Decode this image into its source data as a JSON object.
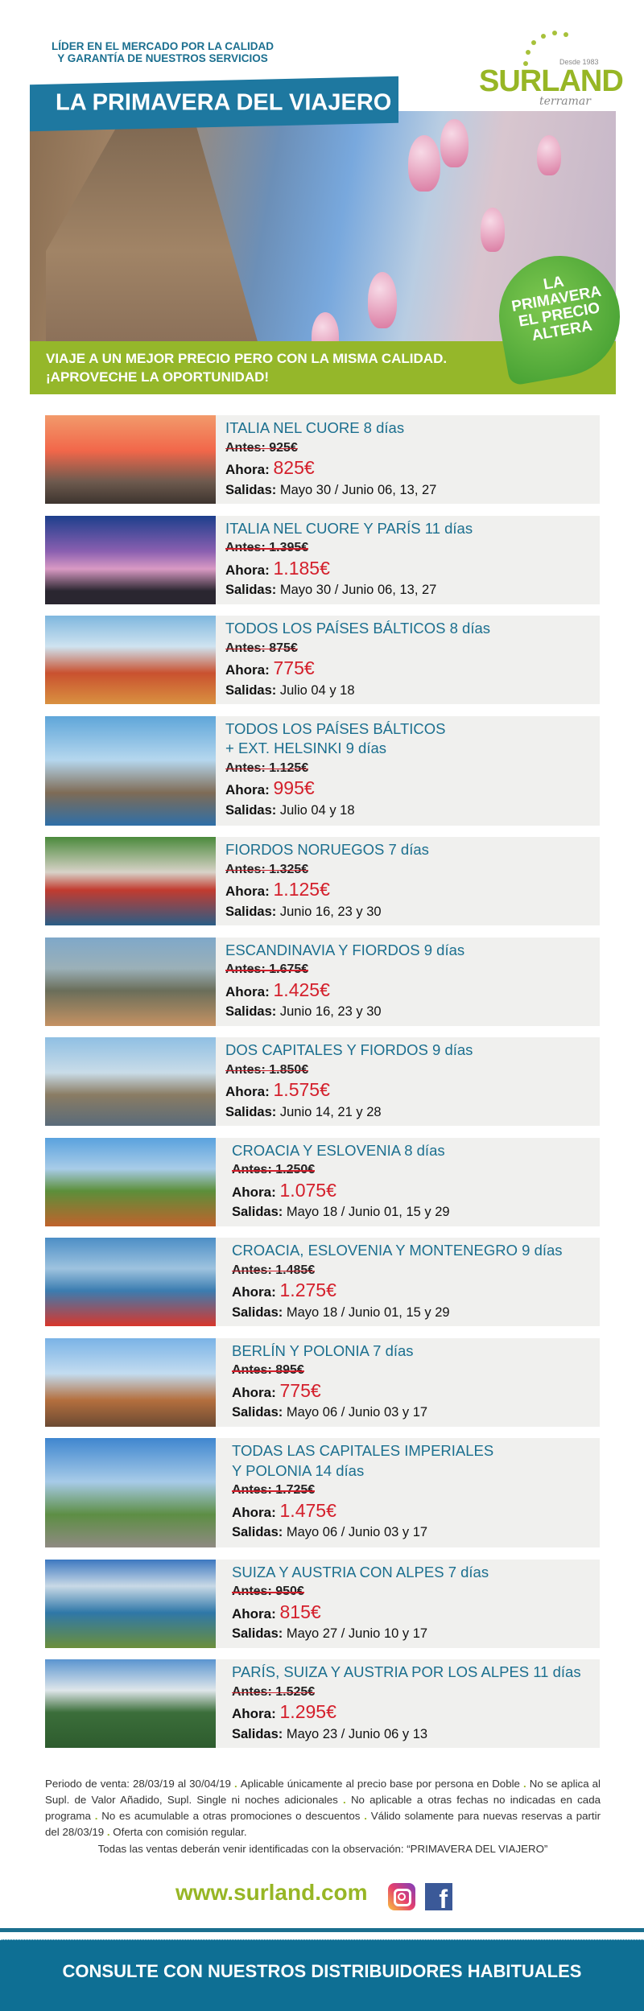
{
  "header": {
    "tagline": [
      "LÍDER EN EL MERCADO POR LA CALIDAD",
      "Y GARANTÍA DE NUESTROS SERVICIOS"
    ],
    "logo": {
      "brand": "SURLAND",
      "sub": "terramar",
      "since": "Desde 1983"
    },
    "banner_title": "LA PRIMAVERA DEL VIAJERO",
    "sticker": [
      "LA",
      "PRIMAVERA",
      "EL PRECIO",
      "ALTERA"
    ],
    "slogan": [
      "VIAJE A UN MEJOR PRECIO PERO CON LA MISMA CALIDAD.",
      "¡APROVECHE LA OPORTUNIDAD!"
    ]
  },
  "labels": {
    "antes": "Antes:",
    "ahora": "Ahora:",
    "salidas": "Salidas:"
  },
  "trips": [
    {
      "title": "ITALIA NEL CUORE 8 días",
      "antes": "925€",
      "ahora": "825€",
      "salidas": "Mayo 30 / Junio 06, 13, 27"
    },
    {
      "title": "ITALIA NEL CUORE Y PARÍS 11 días",
      "antes": "1.395€",
      "ahora": "1.185€",
      "salidas": "Mayo 30 / Junio 06, 13, 27"
    },
    {
      "title": "TODOS LOS PAÍSES BÁLTICOS 8 días",
      "antes": "875€",
      "ahora": "775€",
      "salidas": "Julio 04 y 18"
    },
    {
      "title": "TODOS LOS PAÍSES BÁLTICOS",
      "title2": "+ EXT. HELSINKI 9 días",
      "antes": "1.125€",
      "ahora": "995€",
      "salidas": "Julio 04 y 18"
    },
    {
      "title": "FIORDOS NORUEGOS 7 días",
      "antes": "1.325€",
      "ahora": "1.125€",
      "salidas": "Junio 16, 23 y 30"
    },
    {
      "title": "ESCANDINAVIA Y FIORDOS 9 días",
      "antes": "1.675€",
      "ahora": "1.425€",
      "salidas": "Junio 16, 23 y 30"
    },
    {
      "title": "DOS CAPITALES Y FIORDOS 9 días",
      "antes": "1.850€",
      "ahora": "1.575€",
      "salidas": "Junio 14, 21 y 28"
    },
    {
      "title": "CROACIA Y ESLOVENIA 8 días",
      "antes": "1.250€",
      "ahora": "1.075€",
      "salidas": "Mayo 18 / Junio 01, 15 y 29"
    },
    {
      "title": "CROACIA, ESLOVENIA Y MONTENEGRO 9 días",
      "antes": "1.485€",
      "ahora": "1.275€",
      "salidas": "Mayo 18 / Junio 01, 15 y 29"
    },
    {
      "title": "BERLÍN Y POLONIA 7 días",
      "antes": "895€",
      "ahora": "775€",
      "salidas": "Mayo 06 / Junio 03 y 17"
    },
    {
      "title": "TODAS LAS CAPITALES IMPERIALES",
      "title2": "Y POLONIA 14 días",
      "antes": "1.725€",
      "ahora": "1.475€",
      "salidas": "Mayo 06 / Junio 03 y 17"
    },
    {
      "title": "SUIZA Y AUSTRIA CON ALPES 7 días",
      "antes": "950€",
      "ahora": "815€",
      "salidas": "Mayo 27 / Junio 10 y 17"
    },
    {
      "title": "PARÍS, SUIZA Y AUSTRIA POR LOS ALPES 11 días",
      "antes": "1.525€",
      "ahora": "1.295€",
      "salidas": "Mayo 23 / Junio 06 y 13"
    }
  ],
  "legal": [
    "Periodo de venta: 28/03/19 al 30/04/19",
    "Aplicable únicamente al precio base por persona en Doble",
    "No se aplica al Supl. de Valor Añadido, Supl. Single ni noches adicionales",
    "No aplicable a otras fechas no indicadas en cada programa",
    "No es acumulable a otras promociones o descuentos",
    "Válido solamente para nuevas reservas a partir del 28/03/19",
    "Oferta con comisión regular."
  ],
  "note": "Todas las ventas deberán venir identificadas con la observación: “PRIMAVERA DEL VIAJERO”",
  "footer": {
    "website": "www.surland.com",
    "social": [
      "instagram-icon",
      "facebook-icon"
    ],
    "cta": "CONSULTE CON NUESTROS DISTRIBUIDORES HABITUALES"
  },
  "colors": {
    "brand_green": "#97b625",
    "brand_blue": "#1b6f8f",
    "price_red": "#d41f2b",
    "footer_blue": "#0e6f94"
  }
}
